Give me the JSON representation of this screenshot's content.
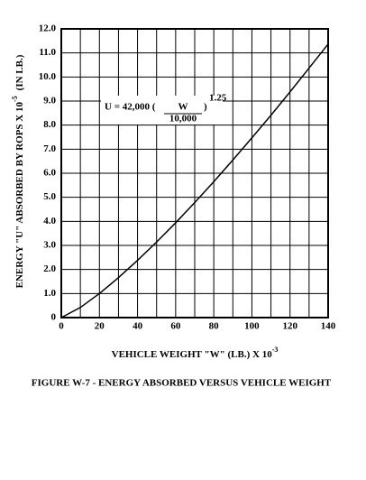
{
  "chart_data": {
    "type": "line",
    "caption": "FIGURE W-7 - ENERGY ABSORBED VERSUS VEHICLE WEIGHT",
    "x_label": {
      "text": "VEHICLE WEIGHT \"W\"  (LB.) X 10",
      "exponent": "-3"
    },
    "y_label": {
      "text": "ENERGY \"U\" ABSORBED BY ROPS X 10",
      "exponent": "-5",
      "unit": "(IN LB.)"
    },
    "annotation": {
      "prefix": "U = 42,000 (",
      "numerator": "W",
      "denominator": "10,000",
      "suffix": ")",
      "exponent": "1.25"
    },
    "x": [
      0,
      10,
      20,
      30,
      40,
      50,
      60,
      70,
      80,
      90,
      100,
      110,
      120,
      130,
      140
    ],
    "series": [
      {
        "color": "#000000",
        "values": [
          0,
          0.42,
          1.0,
          1.66,
          2.38,
          3.14,
          3.94,
          4.78,
          5.65,
          6.55,
          7.47,
          8.41,
          9.38,
          10.37,
          11.37
        ]
      }
    ],
    "xlim": [
      0,
      140
    ],
    "ylim": [
      0,
      12
    ],
    "xticks": [
      0,
      20,
      40,
      60,
      80,
      100,
      120,
      140
    ],
    "xgrid": [
      0,
      10,
      20,
      30,
      40,
      50,
      60,
      70,
      80,
      90,
      100,
      110,
      120,
      130,
      140
    ],
    "yticks": [
      0,
      {
        "value": 1,
        "label": "1.0"
      },
      {
        "value": 2,
        "label": "2.0"
      },
      {
        "value": 3,
        "label": "3.0"
      },
      {
        "value": 4,
        "label": "4.0"
      },
      {
        "value": 5,
        "label": "5.0"
      },
      {
        "value": 6,
        "label": "6.0"
      },
      {
        "value": 7,
        "label": "7.0"
      },
      {
        "value": 8,
        "label": "8.0"
      },
      {
        "value": 9,
        "label": "9.0"
      },
      {
        "value": 10,
        "label": "10.0"
      },
      {
        "value": 11,
        "label": "11.0"
      },
      {
        "value": 12,
        "label": "12.0"
      }
    ],
    "grid": true
  }
}
